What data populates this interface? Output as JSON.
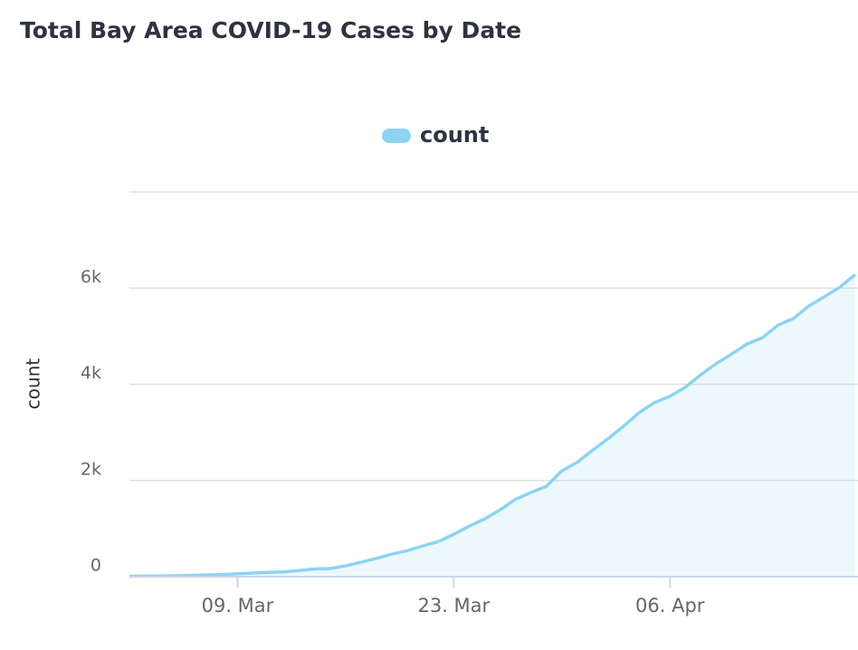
{
  "chart_data": {
    "type": "area",
    "title": "Total Bay Area COVID-19 Cases by Date",
    "ylabel": "count",
    "x": [
      "02. Mar",
      "03. Mar",
      "04. Mar",
      "05. Mar",
      "06. Mar",
      "07. Mar",
      "08. Mar",
      "09. Mar",
      "10. Mar",
      "11. Mar",
      "12. Mar",
      "13. Mar",
      "14. Mar",
      "15. Mar",
      "16. Mar",
      "17. Mar",
      "18. Mar",
      "19. Mar",
      "20. Mar",
      "21. Mar",
      "22. Mar",
      "23. Mar",
      "24. Mar",
      "25. Mar",
      "26. Mar",
      "27. Mar",
      "28. Mar",
      "29. Mar",
      "30. Mar",
      "31. Mar",
      "01. Apr",
      "02. Apr",
      "03. Apr",
      "04. Apr",
      "05. Apr",
      "06. Apr",
      "07. Apr",
      "08. Apr",
      "09. Apr",
      "10. Apr",
      "11. Apr",
      "12. Apr",
      "13. Apr",
      "14. Apr",
      "15. Apr",
      "16. Apr",
      "17. Apr",
      "18. Apr"
    ],
    "xticks": [
      "09. Mar",
      "23. Mar",
      "06. Apr"
    ],
    "series": [
      {
        "name": "count",
        "color": "#8dd3f2",
        "values": [
          10,
          12,
          15,
          20,
          25,
          35,
          45,
          60,
          75,
          90,
          100,
          130,
          160,
          170,
          225,
          300,
          380,
          470,
          540,
          640,
          730,
          880,
          1050,
          1200,
          1390,
          1610,
          1750,
          1880,
          2200,
          2380,
          2630,
          2870,
          3130,
          3410,
          3620,
          3750,
          3940,
          4200,
          4430,
          4630,
          4840,
          4970,
          5230,
          5370,
          5630,
          5820,
          6020,
          6280
        ]
      }
    ],
    "ylim": [
      0,
      8000
    ],
    "yticks": [
      0,
      {
        "value": 2000,
        "label": "2k"
      },
      {
        "value": 4000,
        "label": "4k"
      },
      {
        "value": 6000,
        "label": "6k"
      }
    ],
    "grid": true,
    "legend": "top"
  }
}
